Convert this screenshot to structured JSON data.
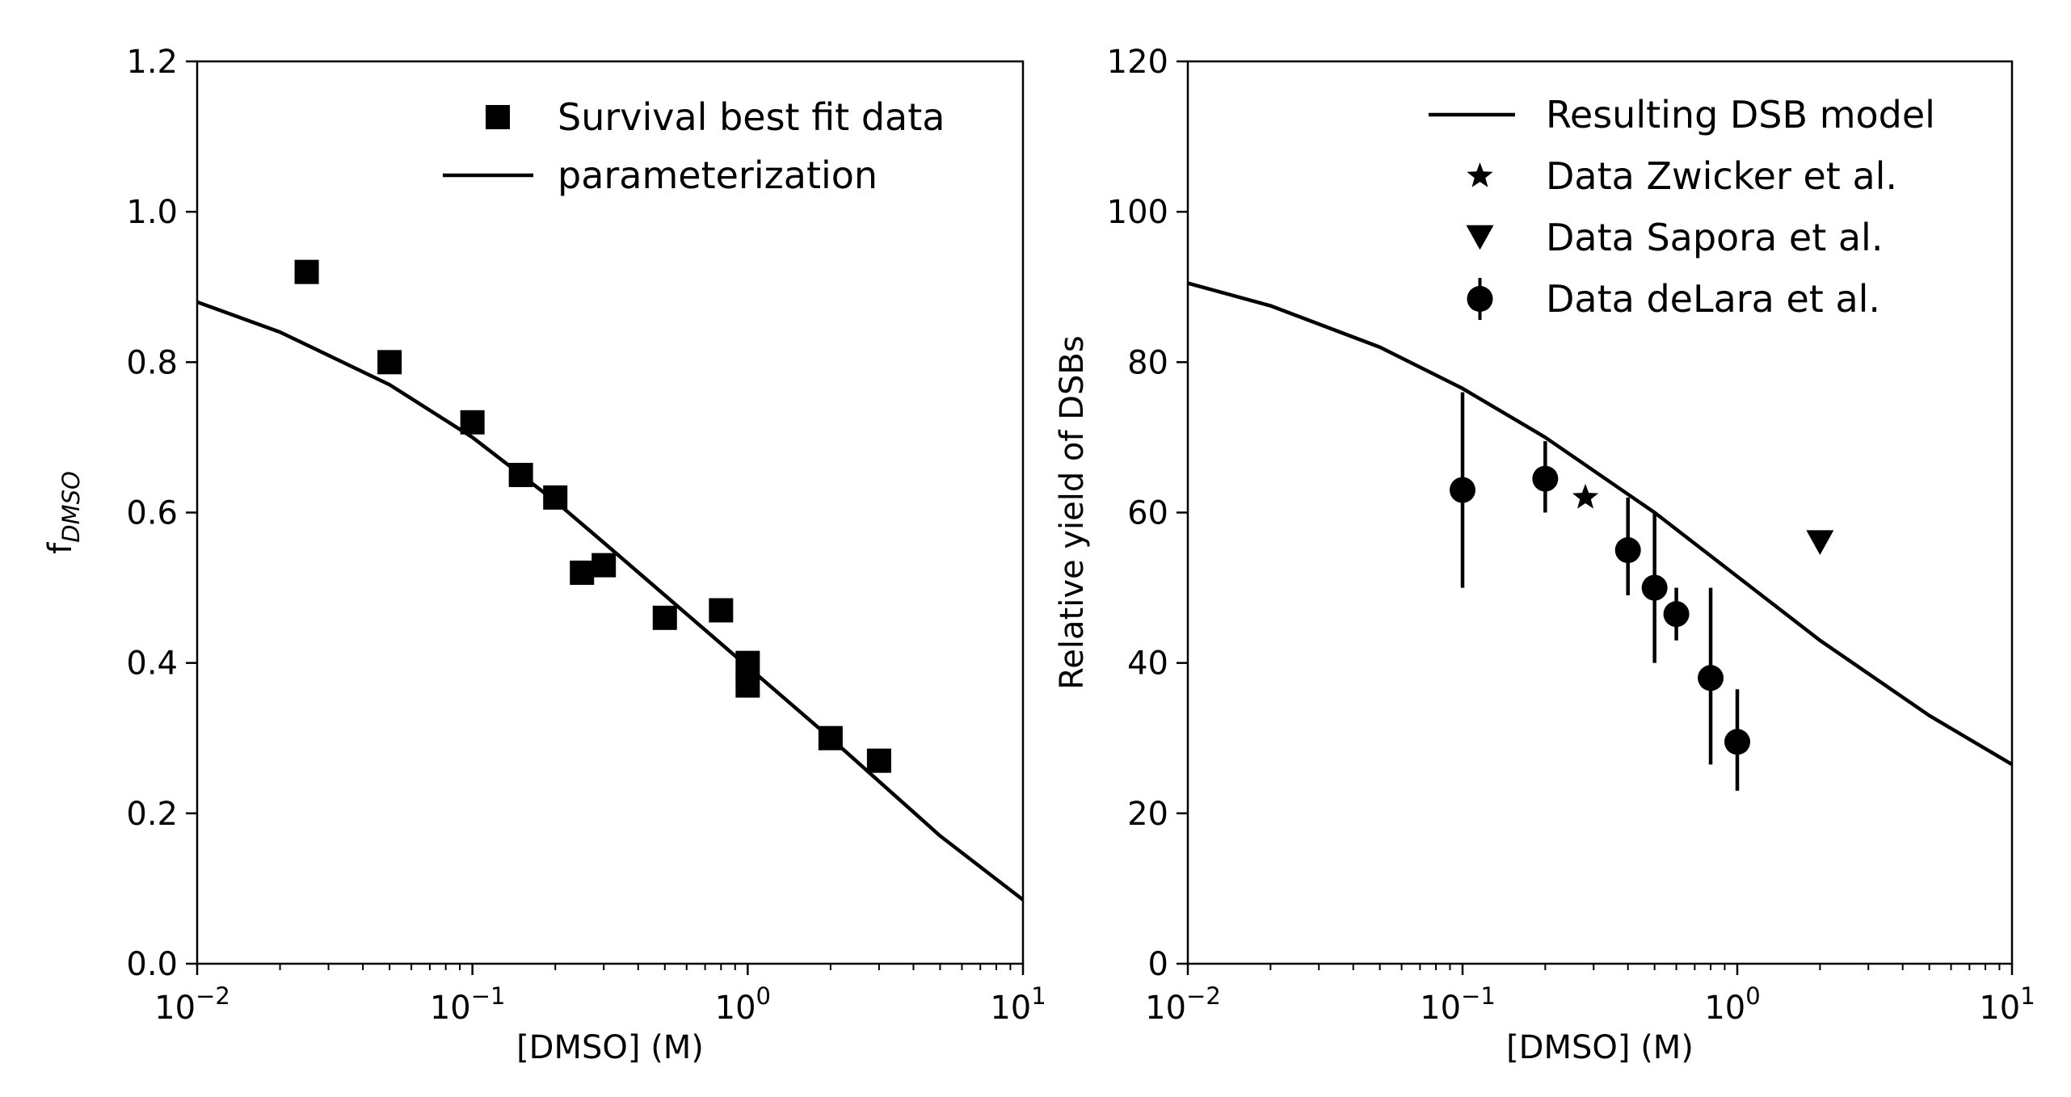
{
  "chart_data": [
    {
      "type": "scatter",
      "panel": "left",
      "title": "",
      "xlabel": "[DMSO] (M)",
      "ylabel": "f",
      "ylabel_sub": "DMSO",
      "xscale": "log",
      "xlim": [
        0.01,
        10
      ],
      "ylim": [
        0.0,
        1.2
      ],
      "xticks": [
        {
          "value": 0.01,
          "base": "10",
          "exp": "−2"
        },
        {
          "value": 0.1,
          "base": "10",
          "exp": "−1"
        },
        {
          "value": 1,
          "base": "10",
          "exp": "0"
        },
        {
          "value": 10,
          "base": "10",
          "exp": "1"
        }
      ],
      "yticks": [
        {
          "value": 0.0,
          "label": "0.0"
        },
        {
          "value": 0.2,
          "label": "0.2"
        },
        {
          "value": 0.4,
          "label": "0.4"
        },
        {
          "value": 0.6,
          "label": "0.6"
        },
        {
          "value": 0.8,
          "label": "0.8"
        },
        {
          "value": 1.0,
          "label": "1.0"
        },
        {
          "value": 1.2,
          "label": "1.2"
        }
      ],
      "legend": [
        {
          "label": "Survival best fit data",
          "marker": "square"
        },
        {
          "label": "parameterization",
          "marker": "line"
        }
      ],
      "series": [
        {
          "name": "Survival best fit data",
          "marker": "square",
          "points": [
            {
              "x": 0.025,
              "y": 0.92
            },
            {
              "x": 0.05,
              "y": 0.8
            },
            {
              "x": 0.1,
              "y": 0.72
            },
            {
              "x": 0.15,
              "y": 0.65
            },
            {
              "x": 0.2,
              "y": 0.62
            },
            {
              "x": 0.25,
              "y": 0.52
            },
            {
              "x": 0.3,
              "y": 0.53
            },
            {
              "x": 0.5,
              "y": 0.46
            },
            {
              "x": 0.8,
              "y": 0.47
            },
            {
              "x": 1.0,
              "y": 0.4
            },
            {
              "x": 1.0,
              "y": 0.37
            },
            {
              "x": 2.0,
              "y": 0.3
            },
            {
              "x": 3.0,
              "y": 0.27
            }
          ]
        },
        {
          "name": "parameterization",
          "marker": "line",
          "points": [
            {
              "x": 0.01,
              "y": 0.88
            },
            {
              "x": 0.02,
              "y": 0.84
            },
            {
              "x": 0.05,
              "y": 0.77
            },
            {
              "x": 0.1,
              "y": 0.7
            },
            {
              "x": 0.2,
              "y": 0.615
            },
            {
              "x": 0.3,
              "y": 0.56
            },
            {
              "x": 0.5,
              "y": 0.49
            },
            {
              "x": 1.0,
              "y": 0.395
            },
            {
              "x": 2.0,
              "y": 0.3
            },
            {
              "x": 5.0,
              "y": 0.17
            },
            {
              "x": 10.0,
              "y": 0.085
            }
          ]
        }
      ]
    },
    {
      "type": "scatter",
      "panel": "right",
      "title": "",
      "xlabel": "[DMSO] (M)",
      "ylabel": "Relative yield of DSBs",
      "xscale": "log",
      "xlim": [
        0.01,
        10
      ],
      "ylim": [
        0,
        120
      ],
      "xticks": [
        {
          "value": 0.01,
          "base": "10",
          "exp": "−2"
        },
        {
          "value": 0.1,
          "base": "10",
          "exp": "−1"
        },
        {
          "value": 1,
          "base": "10",
          "exp": "0"
        },
        {
          "value": 10,
          "base": "10",
          "exp": "1"
        }
      ],
      "yticks": [
        {
          "value": 0,
          "label": "0"
        },
        {
          "value": 20,
          "label": "20"
        },
        {
          "value": 40,
          "label": "40"
        },
        {
          "value": 60,
          "label": "60"
        },
        {
          "value": 80,
          "label": "80"
        },
        {
          "value": 100,
          "label": "100"
        },
        {
          "value": 120,
          "label": "120"
        }
      ],
      "legend": [
        {
          "label": "Resulting DSB model",
          "marker": "line"
        },
        {
          "label": "Data Zwicker et al.",
          "marker": "star"
        },
        {
          "label": "Data Sapora et al.",
          "marker": "triangle-down"
        },
        {
          "label": "Data deLara et al.",
          "marker": "circle-errorbar"
        }
      ],
      "series": [
        {
          "name": "Resulting DSB model",
          "marker": "line",
          "points": [
            {
              "x": 0.01,
              "y": 90.5
            },
            {
              "x": 0.02,
              "y": 87.5
            },
            {
              "x": 0.05,
              "y": 82.0
            },
            {
              "x": 0.1,
              "y": 76.5
            },
            {
              "x": 0.2,
              "y": 70.0
            },
            {
              "x": 0.5,
              "y": 60.0
            },
            {
              "x": 1.0,
              "y": 51.5
            },
            {
              "x": 2.0,
              "y": 43.0
            },
            {
              "x": 5.0,
              "y": 33.0
            },
            {
              "x": 10.0,
              "y": 26.5
            }
          ]
        },
        {
          "name": "Data Zwicker et al.",
          "marker": "star",
          "points": [
            {
              "x": 0.28,
              "y": 62
            }
          ]
        },
        {
          "name": "Data Sapora et al.",
          "marker": "triangle-down",
          "points": [
            {
              "x": 2.0,
              "y": 56
            }
          ]
        },
        {
          "name": "Data deLara et al.",
          "marker": "circle-errorbar",
          "points": [
            {
              "x": 0.1,
              "y": 63,
              "ylo": 50,
              "yhi": 76
            },
            {
              "x": 0.2,
              "y": 64.5,
              "ylo": 60,
              "yhi": 69.5
            },
            {
              "x": 0.4,
              "y": 55,
              "ylo": 49,
              "yhi": 62
            },
            {
              "x": 0.5,
              "y": 50,
              "ylo": 40,
              "yhi": 60
            },
            {
              "x": 0.6,
              "y": 46.5,
              "ylo": 43,
              "yhi": 50
            },
            {
              "x": 0.8,
              "y": 38,
              "ylo": 26.5,
              "yhi": 50
            },
            {
              "x": 1.0,
              "y": 29.5,
              "ylo": 23,
              "yhi": 36.5
            }
          ]
        }
      ]
    }
  ]
}
